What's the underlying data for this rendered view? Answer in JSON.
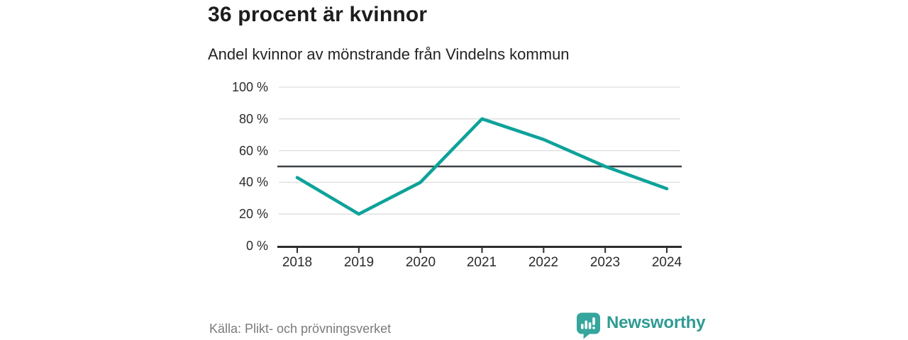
{
  "chart_data": {
    "type": "line",
    "title": "36 procent är kvinnor",
    "subtitle": "Andel kvinnor av mönstrande från Vindelns kommun",
    "categories": [
      "2018",
      "2019",
      "2020",
      "2021",
      "2022",
      "2023",
      "2024"
    ],
    "values": [
      43,
      20,
      40,
      80,
      67,
      50,
      36
    ],
    "unit": "%",
    "xlabel": "",
    "ylabel": "",
    "ylim": [
      0,
      100
    ],
    "y_tick_step": 20,
    "y_tick_labels": [
      "100 %",
      "80 %",
      "60 %",
      "40 %",
      "20 %",
      "0 %"
    ],
    "reference_line_y": 50,
    "grid": true,
    "legend": "none",
    "colors": {
      "line": "#0EA29A",
      "reference_line": "#3E4143",
      "grid": "#DDDDDD",
      "axis": "#2B2D2F",
      "text": "#2A2B2A"
    }
  },
  "footer": {
    "source": "Källa: Plikt- och prövningsverket",
    "brand_name": "Newsworthy",
    "brand_color": "#2F9B94",
    "brand_icon_color": "#35A59D"
  },
  "icons": {
    "brand_logo": "bar-chart-speech-bubble-icon"
  }
}
